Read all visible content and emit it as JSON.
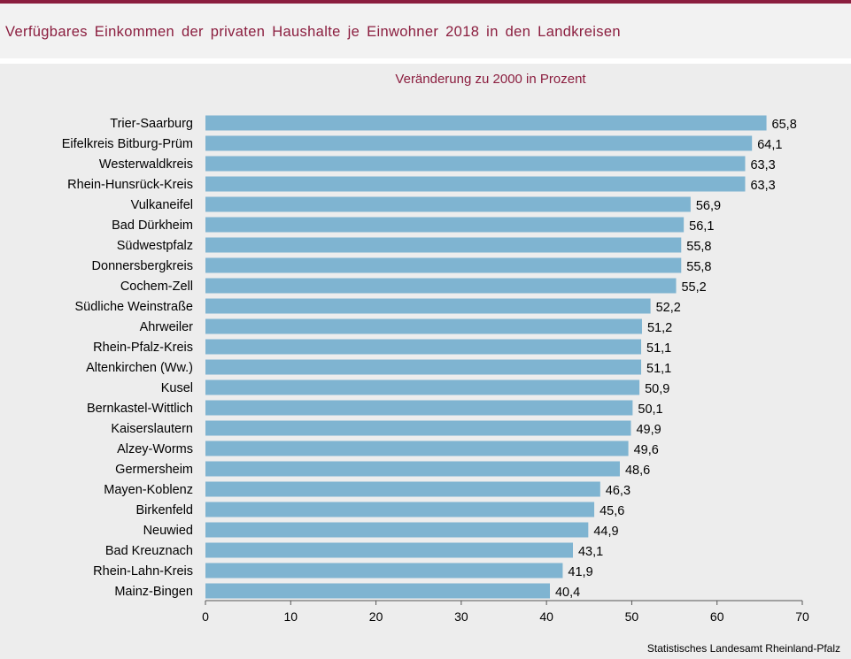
{
  "title": "Verfügbares  Einkommen  der privaten  Haushalte  je Einwohner  2018  in den  Landkreisen",
  "source": "Statistisches Landesamt  Rheinland-Pfalz",
  "colors": {
    "accent": "#8b1e3f",
    "bar": "#7fb4d1",
    "background": "#ededed"
  },
  "chart_data": {
    "type": "bar",
    "orientation": "horizontal",
    "subtitle": "Veränderung zu 2000 in Prozent",
    "categories": [
      "Trier-Saarburg",
      "Eifelkreis Bitburg-Prüm",
      "Westerwaldkreis",
      "Rhein-Hunsrück-Kreis",
      "Vulkaneifel",
      "Bad Dürkheim",
      "Südwestpfalz",
      "Donnersbergkreis",
      "Cochem-Zell",
      "Südliche Weinstraße",
      "Ahrweiler",
      "Rhein-Pfalz-Kreis",
      "Altenkirchen (Ww.)",
      "Kusel",
      "Bernkastel-Wittlich",
      "Kaiserslautern",
      "Alzey-Worms",
      "Germersheim",
      "Mayen-Koblenz",
      "Birkenfeld",
      "Neuwied",
      "Bad Kreuznach",
      "Rhein-Lahn-Kreis",
      "Mainz-Bingen"
    ],
    "values": [
      65.8,
      64.1,
      63.3,
      63.3,
      56.9,
      56.1,
      55.8,
      55.8,
      55.2,
      52.2,
      51.2,
      51.1,
      51.1,
      50.9,
      50.1,
      49.9,
      49.6,
      48.6,
      46.3,
      45.6,
      44.9,
      43.1,
      41.9,
      40.4
    ],
    "value_labels": [
      "65,8",
      "64,1",
      "63,3",
      "63,3",
      "56,9",
      "56,1",
      "55,8",
      "55,8",
      "55,2",
      "52,2",
      "51,2",
      "51,1",
      "51,1",
      "50,9",
      "50,1",
      "49,9",
      "49,6",
      "48,6",
      "46,3",
      "45,6",
      "44,9",
      "43,1",
      "41,9",
      "40,4"
    ],
    "xlim": [
      0,
      70
    ],
    "xticks": [
      0,
      10,
      20,
      30,
      40,
      50,
      60,
      70
    ],
    "grid": false
  }
}
